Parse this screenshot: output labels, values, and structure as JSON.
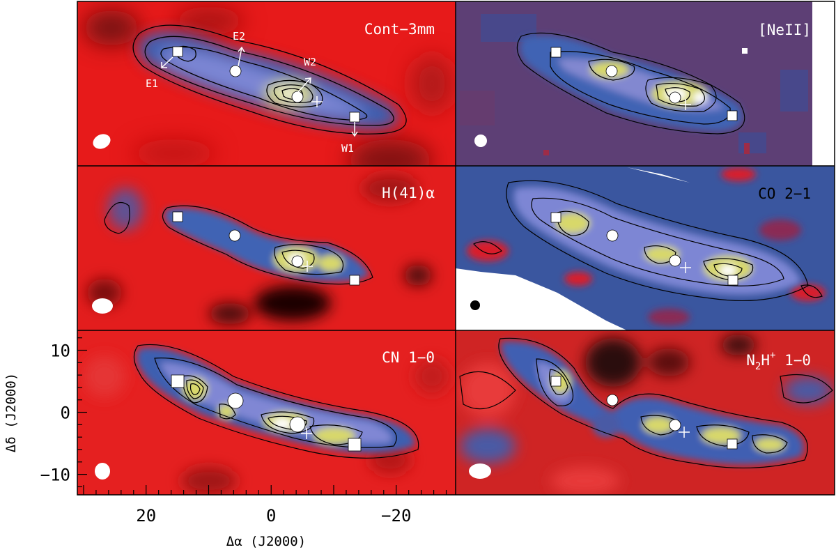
{
  "figure": {
    "panels": [
      {
        "id": "cont",
        "title": "Cont−3mm",
        "title_color": "#ffffff",
        "labeled_markers": [
          {
            "id": "E1",
            "label": "E1"
          },
          {
            "id": "E2",
            "label": "E2"
          },
          {
            "id": "W2",
            "label": "W2"
          },
          {
            "id": "W1",
            "label": "W1"
          }
        ]
      },
      {
        "id": "neii",
        "title": "[NeII]",
        "title_color": "#ffffff"
      },
      {
        "id": "h41",
        "title": "H(41)α",
        "title_color": "#ffffff"
      },
      {
        "id": "co",
        "title": "CO 2−1",
        "title_color": "#000000"
      },
      {
        "id": "cn",
        "title": "CN 1−0",
        "title_color": "#ffffff"
      },
      {
        "id": "n2h",
        "title_parts": {
          "a": "N",
          "sub": "2",
          "b": "H",
          "sup": "+",
          "c": " 1−0"
        },
        "title_color": "#ffffff"
      }
    ],
    "axes": {
      "xlabel": "Δα (J2000)",
      "ylabel": "Δδ (J2000)",
      "x_ticks": [
        {
          "value": 20,
          "label": "20"
        },
        {
          "value": 0,
          "label": "0"
        },
        {
          "value": -20,
          "label": "−20"
        }
      ],
      "y_ticks": [
        {
          "value": 10,
          "label": "10"
        },
        {
          "value": 0,
          "label": "0"
        },
        {
          "value": -10,
          "label": "−10"
        }
      ],
      "x_range": [
        31,
        -29.5
      ],
      "y_range": [
        -13.3,
        13.2
      ]
    },
    "colors": {
      "background_low": "#ee1c1c",
      "mid": "#3a5aa8",
      "high": "#dede5a",
      "peak": "#ffffff"
    }
  }
}
